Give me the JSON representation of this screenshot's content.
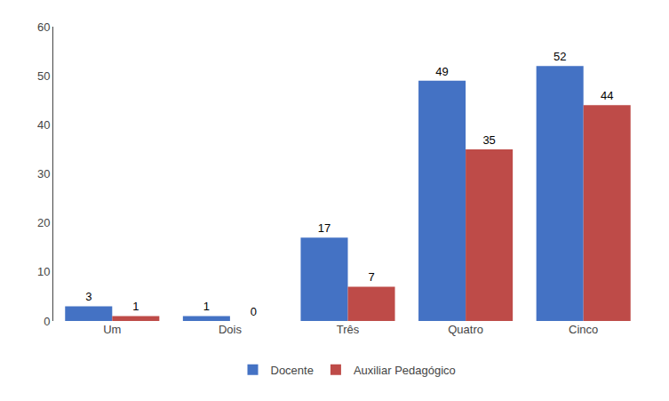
{
  "chart_data": {
    "type": "bar",
    "categories": [
      "Um",
      "Dois",
      "Três",
      "Quatro",
      "Cinco"
    ],
    "series": [
      {
        "name": "Docente",
        "color": "#4472C4",
        "values": [
          3,
          1,
          17,
          49,
          52
        ]
      },
      {
        "name": "Auxiliar Pedagógico",
        "color": "#BE4B48",
        "values": [
          1,
          0,
          7,
          35,
          44
        ]
      }
    ],
    "ylim": [
      0,
      60
    ],
    "yticks": [
      0,
      10,
      20,
      30,
      40,
      50,
      60
    ],
    "grid": false,
    "legend": "bottom",
    "data_labels": true
  }
}
